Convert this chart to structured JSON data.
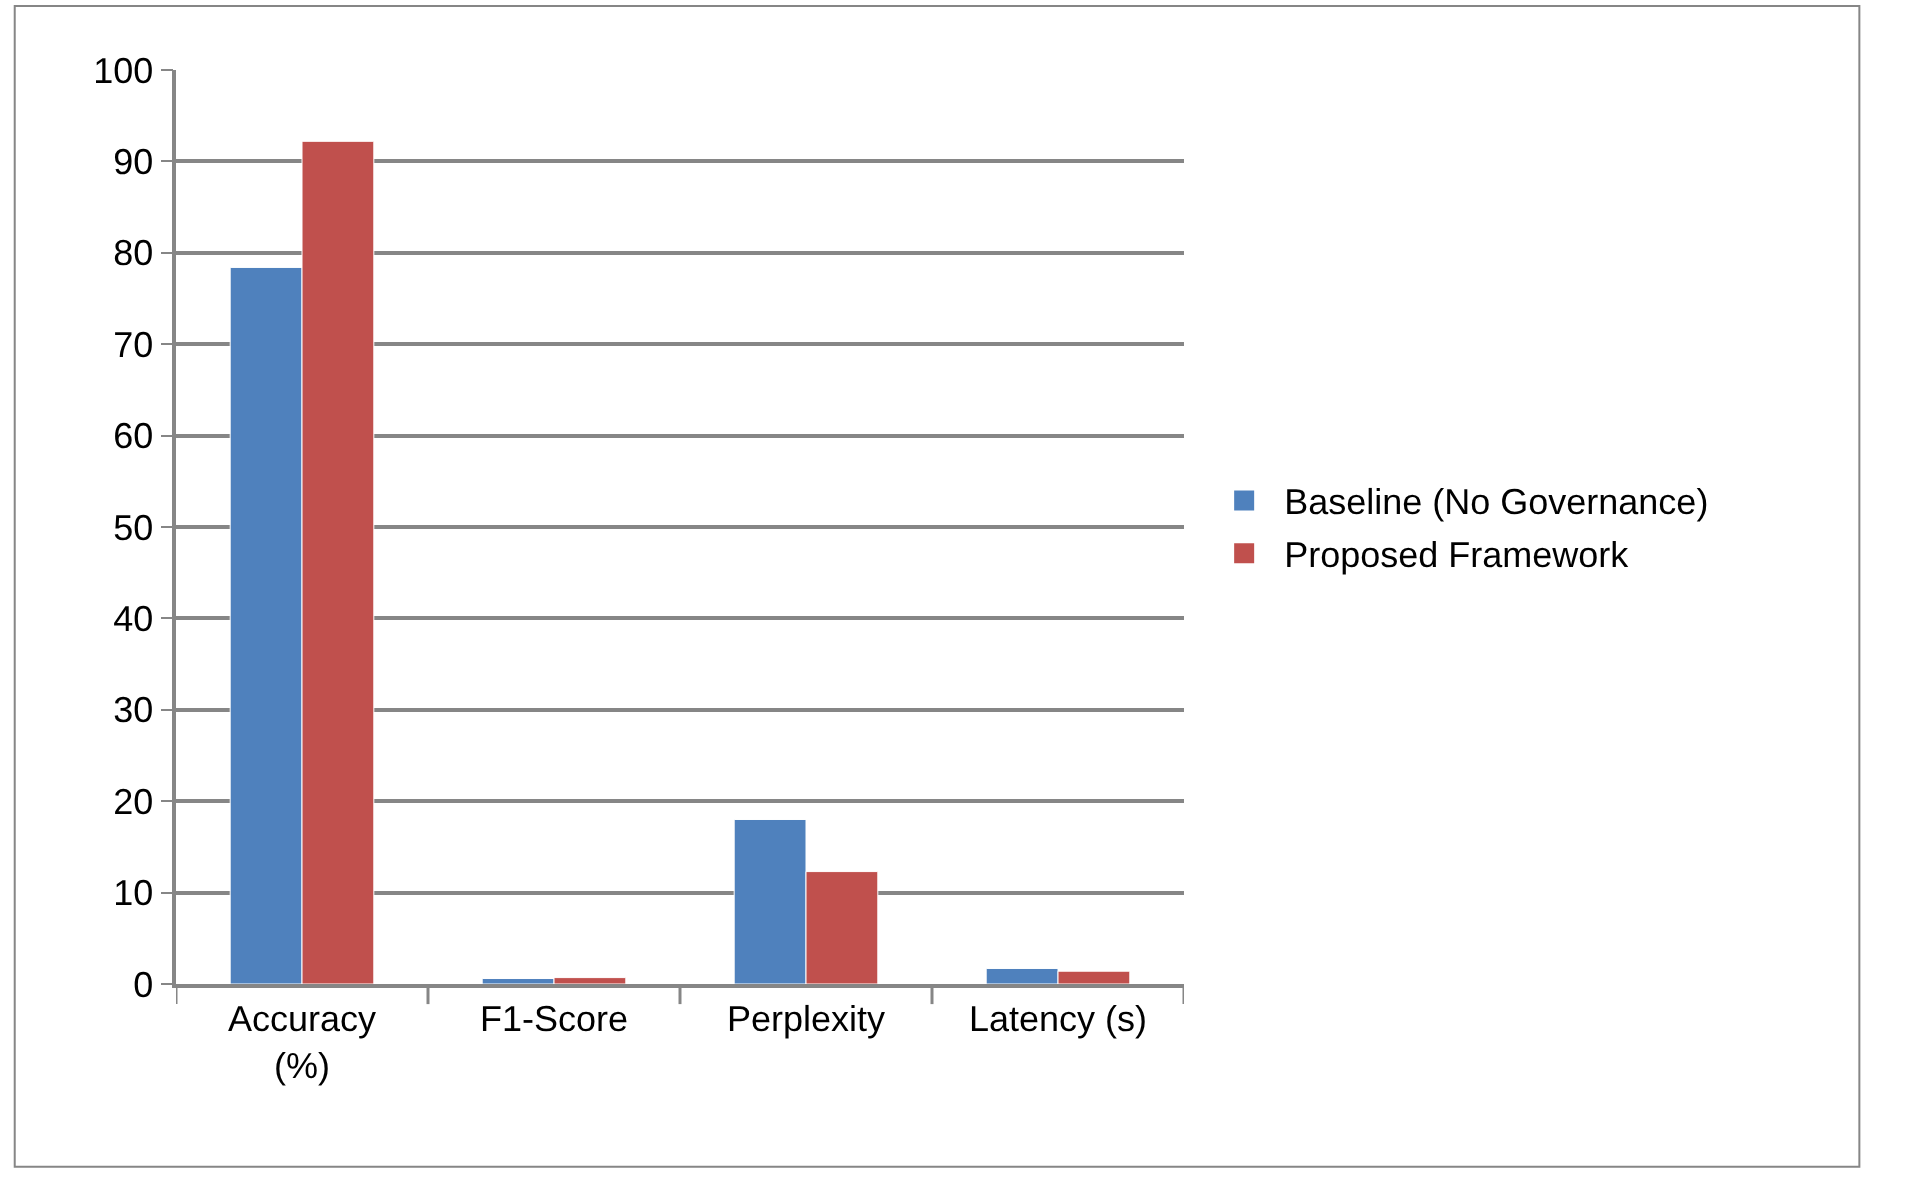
{
  "chart_data": {
    "type": "bar",
    "categories": [
      "Accuracy (%)",
      "F1-Score",
      "Perplexity",
      "Latency (s)"
    ],
    "series": [
      {
        "name": "Baseline (No Governance)",
        "color": "#4f81bd",
        "values": [
          78.4,
          0.6,
          18.0,
          1.7
        ]
      },
      {
        "name": "Proposed Framework",
        "color": "#c0504d",
        "values": [
          92.2,
          0.7,
          12.3,
          1.4
        ]
      }
    ],
    "ylim": [
      0,
      100
    ],
    "yticks": [
      0,
      10,
      20,
      30,
      40,
      50,
      60,
      70,
      80,
      90,
      100
    ],
    "grid": "y",
    "legend": "right"
  }
}
